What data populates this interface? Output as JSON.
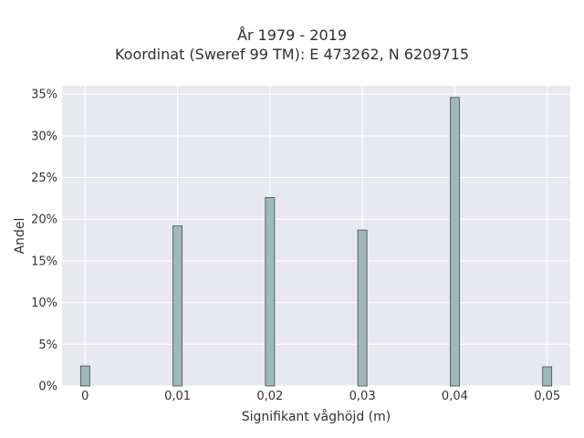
{
  "chart_data": {
    "type": "bar",
    "title": "År 1979 - 2019",
    "subtitle": "Koordinat (Sweref 99 TM): E 473262, N 6209715",
    "xlabel": "Signifikant våghöjd (m)",
    "ylabel": "Andel",
    "x": [
      0,
      0.01,
      0.02,
      0.03,
      0.04,
      0.05
    ],
    "x_tick_labels": [
      "0",
      "0,01",
      "0,02",
      "0,03",
      "0,04",
      "0,05"
    ],
    "values": [
      2.4,
      19.2,
      22.6,
      18.7,
      34.6,
      2.3
    ],
    "value_unit": "%",
    "xlim": [
      -0.0025,
      0.0525
    ],
    "ylim": [
      0,
      36
    ],
    "yticks": [
      0,
      5,
      10,
      15,
      20,
      25,
      30,
      35
    ],
    "y_tick_labels": [
      "0%",
      "5%",
      "10%",
      "15%",
      "20%",
      "25%",
      "30%",
      "35%"
    ],
    "bar_color": "#9fb8b8",
    "bar_edge_color": "#3d4a4a",
    "plot_background": "#e8e9f0",
    "grid_color": "#ffffff",
    "grid": true
  }
}
